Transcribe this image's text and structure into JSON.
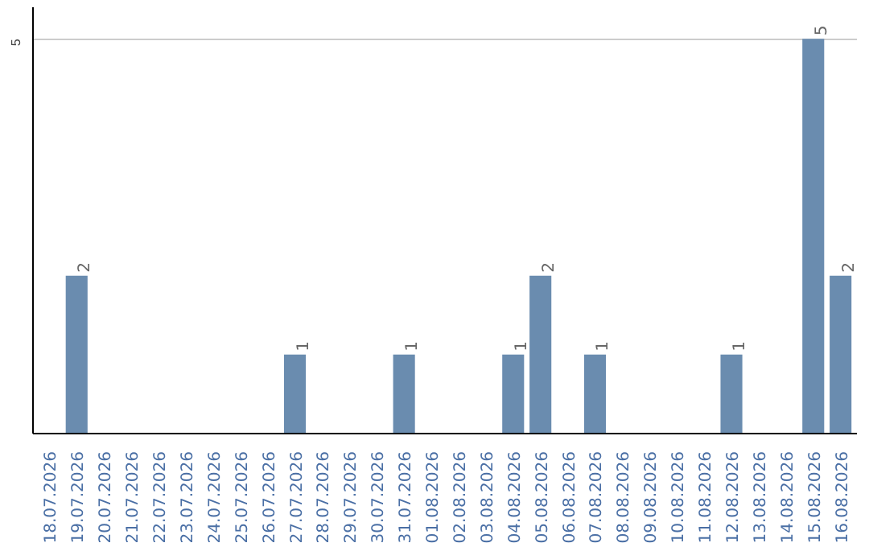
{
  "chart_data": {
    "type": "bar",
    "categories": [
      "18.07.2026",
      "19.07.2026",
      "20.07.2026",
      "21.07.2026",
      "22.07.2026",
      "23.07.2026",
      "24.07.2026",
      "25.07.2026",
      "26.07.2026",
      "27.07.2026",
      "28.07.2026",
      "29.07.2026",
      "30.07.2026",
      "31.07.2026",
      "01.08.2026",
      "02.08.2026",
      "03.08.2026",
      "04.08.2026",
      "05.08.2026",
      "06.08.2026",
      "07.08.2026",
      "08.08.2026",
      "09.08.2026",
      "10.08.2026",
      "11.08.2026",
      "12.08.2026",
      "13.08.2026",
      "14.08.2026",
      "15.08.2026",
      "16.08.2026"
    ],
    "values": [
      0,
      2,
      0,
      0,
      0,
      0,
      0,
      0,
      0,
      1,
      0,
      0,
      0,
      1,
      0,
      0,
      0,
      1,
      2,
      0,
      1,
      0,
      0,
      0,
      0,
      1,
      0,
      0,
      5,
      2
    ],
    "value_labels": [
      null,
      "2",
      null,
      null,
      null,
      null,
      null,
      null,
      null,
      "1",
      null,
      null,
      null,
      "1",
      null,
      null,
      null,
      "1",
      "2",
      null,
      "1",
      null,
      null,
      null,
      null,
      "1",
      null,
      null,
      "5",
      "2"
    ],
    "color": "#6a8caf",
    "ylim": [
      0,
      5.4
    ],
    "yticks": [
      5
    ],
    "grid": "y"
  }
}
